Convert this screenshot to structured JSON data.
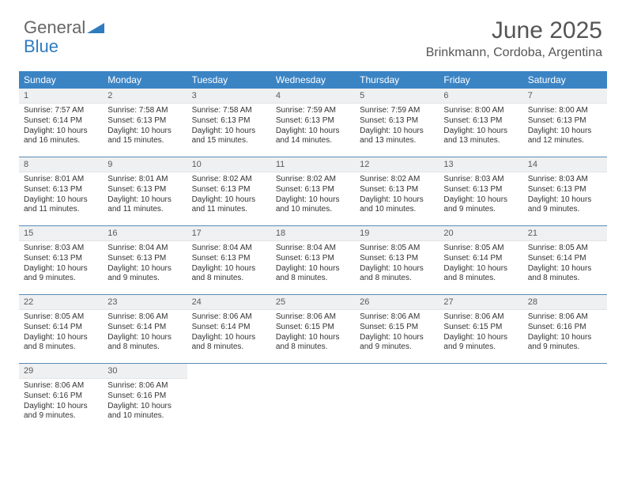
{
  "brand": {
    "part1": "General",
    "part2": "Blue"
  },
  "title": "June 2025",
  "location": "Brinkmann, Cordoba, Argentina",
  "colors": {
    "header_bg": "#3b84c4",
    "header_text": "#ffffff",
    "daynum_bg": "#eef0f1",
    "week_border": "#5b8bb5",
    "body_text": "#333333",
    "title_text": "#555555",
    "brand_gray": "#666666",
    "brand_blue": "#2f7bbf"
  },
  "day_names": [
    "Sunday",
    "Monday",
    "Tuesday",
    "Wednesday",
    "Thursday",
    "Friday",
    "Saturday"
  ],
  "days": [
    {
      "n": 1,
      "sunrise": "7:57 AM",
      "sunset": "6:14 PM",
      "daylight": "10 hours and 16 minutes."
    },
    {
      "n": 2,
      "sunrise": "7:58 AM",
      "sunset": "6:13 PM",
      "daylight": "10 hours and 15 minutes."
    },
    {
      "n": 3,
      "sunrise": "7:58 AM",
      "sunset": "6:13 PM",
      "daylight": "10 hours and 15 minutes."
    },
    {
      "n": 4,
      "sunrise": "7:59 AM",
      "sunset": "6:13 PM",
      "daylight": "10 hours and 14 minutes."
    },
    {
      "n": 5,
      "sunrise": "7:59 AM",
      "sunset": "6:13 PM",
      "daylight": "10 hours and 13 minutes."
    },
    {
      "n": 6,
      "sunrise": "8:00 AM",
      "sunset": "6:13 PM",
      "daylight": "10 hours and 13 minutes."
    },
    {
      "n": 7,
      "sunrise": "8:00 AM",
      "sunset": "6:13 PM",
      "daylight": "10 hours and 12 minutes."
    },
    {
      "n": 8,
      "sunrise": "8:01 AM",
      "sunset": "6:13 PM",
      "daylight": "10 hours and 11 minutes."
    },
    {
      "n": 9,
      "sunrise": "8:01 AM",
      "sunset": "6:13 PM",
      "daylight": "10 hours and 11 minutes."
    },
    {
      "n": 10,
      "sunrise": "8:02 AM",
      "sunset": "6:13 PM",
      "daylight": "10 hours and 11 minutes."
    },
    {
      "n": 11,
      "sunrise": "8:02 AM",
      "sunset": "6:13 PM",
      "daylight": "10 hours and 10 minutes."
    },
    {
      "n": 12,
      "sunrise": "8:02 AM",
      "sunset": "6:13 PM",
      "daylight": "10 hours and 10 minutes."
    },
    {
      "n": 13,
      "sunrise": "8:03 AM",
      "sunset": "6:13 PM",
      "daylight": "10 hours and 9 minutes."
    },
    {
      "n": 14,
      "sunrise": "8:03 AM",
      "sunset": "6:13 PM",
      "daylight": "10 hours and 9 minutes."
    },
    {
      "n": 15,
      "sunrise": "8:03 AM",
      "sunset": "6:13 PM",
      "daylight": "10 hours and 9 minutes."
    },
    {
      "n": 16,
      "sunrise": "8:04 AM",
      "sunset": "6:13 PM",
      "daylight": "10 hours and 9 minutes."
    },
    {
      "n": 17,
      "sunrise": "8:04 AM",
      "sunset": "6:13 PM",
      "daylight": "10 hours and 8 minutes."
    },
    {
      "n": 18,
      "sunrise": "8:04 AM",
      "sunset": "6:13 PM",
      "daylight": "10 hours and 8 minutes."
    },
    {
      "n": 19,
      "sunrise": "8:05 AM",
      "sunset": "6:13 PM",
      "daylight": "10 hours and 8 minutes."
    },
    {
      "n": 20,
      "sunrise": "8:05 AM",
      "sunset": "6:14 PM",
      "daylight": "10 hours and 8 minutes."
    },
    {
      "n": 21,
      "sunrise": "8:05 AM",
      "sunset": "6:14 PM",
      "daylight": "10 hours and 8 minutes."
    },
    {
      "n": 22,
      "sunrise": "8:05 AM",
      "sunset": "6:14 PM",
      "daylight": "10 hours and 8 minutes."
    },
    {
      "n": 23,
      "sunrise": "8:06 AM",
      "sunset": "6:14 PM",
      "daylight": "10 hours and 8 minutes."
    },
    {
      "n": 24,
      "sunrise": "8:06 AM",
      "sunset": "6:14 PM",
      "daylight": "10 hours and 8 minutes."
    },
    {
      "n": 25,
      "sunrise": "8:06 AM",
      "sunset": "6:15 PM",
      "daylight": "10 hours and 8 minutes."
    },
    {
      "n": 26,
      "sunrise": "8:06 AM",
      "sunset": "6:15 PM",
      "daylight": "10 hours and 9 minutes."
    },
    {
      "n": 27,
      "sunrise": "8:06 AM",
      "sunset": "6:15 PM",
      "daylight": "10 hours and 9 minutes."
    },
    {
      "n": 28,
      "sunrise": "8:06 AM",
      "sunset": "6:16 PM",
      "daylight": "10 hours and 9 minutes."
    },
    {
      "n": 29,
      "sunrise": "8:06 AM",
      "sunset": "6:16 PM",
      "daylight": "10 hours and 9 minutes."
    },
    {
      "n": 30,
      "sunrise": "8:06 AM",
      "sunset": "6:16 PM",
      "daylight": "10 hours and 10 minutes."
    }
  ],
  "labels": {
    "sunrise": "Sunrise:",
    "sunset": "Sunset:",
    "daylight": "Daylight:"
  },
  "first_weekday_index": 0,
  "trailing_empty": 5
}
